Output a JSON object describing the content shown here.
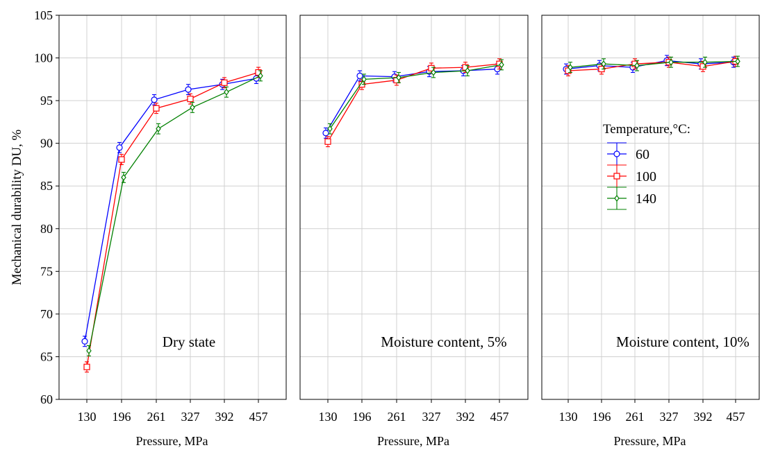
{
  "chart_data": [
    {
      "type": "line",
      "annotation": "Dry state",
      "xlabel": "Pressure, MPa",
      "ylabel": "Mechanical durability DU, %",
      "categories": [
        "130",
        "196",
        "261",
        "327",
        "392",
        "457"
      ],
      "ylim": [
        60,
        105
      ],
      "yticks": [
        60,
        65,
        70,
        75,
        80,
        85,
        90,
        95,
        100,
        105
      ],
      "grid": true,
      "series": [
        {
          "name": "60",
          "color": "#0000ff",
          "marker": "circle",
          "values": [
            66.8,
            89.5,
            95.1,
            96.3,
            96.9,
            97.6
          ],
          "errors": [
            0.6,
            0.6,
            0.6,
            0.6,
            0.6,
            0.6
          ]
        },
        {
          "name": "100",
          "color": "#ff0000",
          "marker": "square",
          "values": [
            63.8,
            88.1,
            94.1,
            95.2,
            97.1,
            98.3
          ],
          "errors": [
            0.6,
            0.6,
            0.6,
            0.6,
            0.6,
            0.6
          ]
        },
        {
          "name": "140",
          "color": "#008000",
          "marker": "diamond",
          "values": [
            65.7,
            86.0,
            91.7,
            94.2,
            96.0,
            97.9
          ],
          "errors": [
            0.6,
            0.6,
            0.6,
            0.6,
            0.6,
            0.6
          ]
        }
      ]
    },
    {
      "type": "line",
      "annotation": "Moisture content, 5%",
      "xlabel": "Pressure, MPa",
      "categories": [
        "130",
        "196",
        "261",
        "327",
        "392",
        "457"
      ],
      "ylim": [
        60,
        105
      ],
      "grid": true,
      "series": [
        {
          "name": "60",
          "color": "#0000ff",
          "marker": "circle",
          "values": [
            91.2,
            97.9,
            97.8,
            98.4,
            98.5,
            98.7
          ],
          "errors": [
            0.6,
            0.6,
            0.6,
            0.6,
            0.6,
            0.6
          ]
        },
        {
          "name": "100",
          "color": "#ff0000",
          "marker": "square",
          "values": [
            90.2,
            96.9,
            97.4,
            98.8,
            98.9,
            99.3
          ],
          "errors": [
            0.6,
            0.6,
            0.6,
            0.6,
            0.6,
            0.6
          ]
        },
        {
          "name": "140",
          "color": "#008000",
          "marker": "diamond",
          "values": [
            91.7,
            97.5,
            97.7,
            98.3,
            98.5,
            99.2
          ],
          "errors": [
            0.6,
            0.6,
            0.6,
            0.6,
            0.6,
            0.6
          ]
        }
      ]
    },
    {
      "type": "line",
      "annotation": "Moisture content, 10%",
      "xlabel": "Pressure, MPa",
      "categories": [
        "130",
        "196",
        "261",
        "327",
        "392",
        "457"
      ],
      "ylim": [
        60,
        105
      ],
      "grid": true,
      "legend": {
        "title": "Temperature,°C:",
        "position": "right-middle",
        "entries": [
          "60",
          "100",
          "140"
        ]
      },
      "series": [
        {
          "name": "60",
          "color": "#0000ff",
          "marker": "circle",
          "values": [
            98.7,
            99.1,
            98.9,
            99.7,
            99.3,
            99.5
          ],
          "errors": [
            0.6,
            0.6,
            0.6,
            0.6,
            0.6,
            0.6
          ]
        },
        {
          "name": "100",
          "color": "#ff0000",
          "marker": "square",
          "values": [
            98.5,
            98.7,
            99.3,
            99.5,
            99.0,
            99.6
          ],
          "errors": [
            0.6,
            0.6,
            0.6,
            0.6,
            0.6,
            0.6
          ]
        },
        {
          "name": "140",
          "color": "#008000",
          "marker": "diamond",
          "values": [
            98.9,
            99.3,
            99.1,
            99.5,
            99.5,
            99.6
          ],
          "errors": [
            0.6,
            0.6,
            0.6,
            0.6,
            0.6,
            0.6
          ]
        }
      ]
    }
  ]
}
